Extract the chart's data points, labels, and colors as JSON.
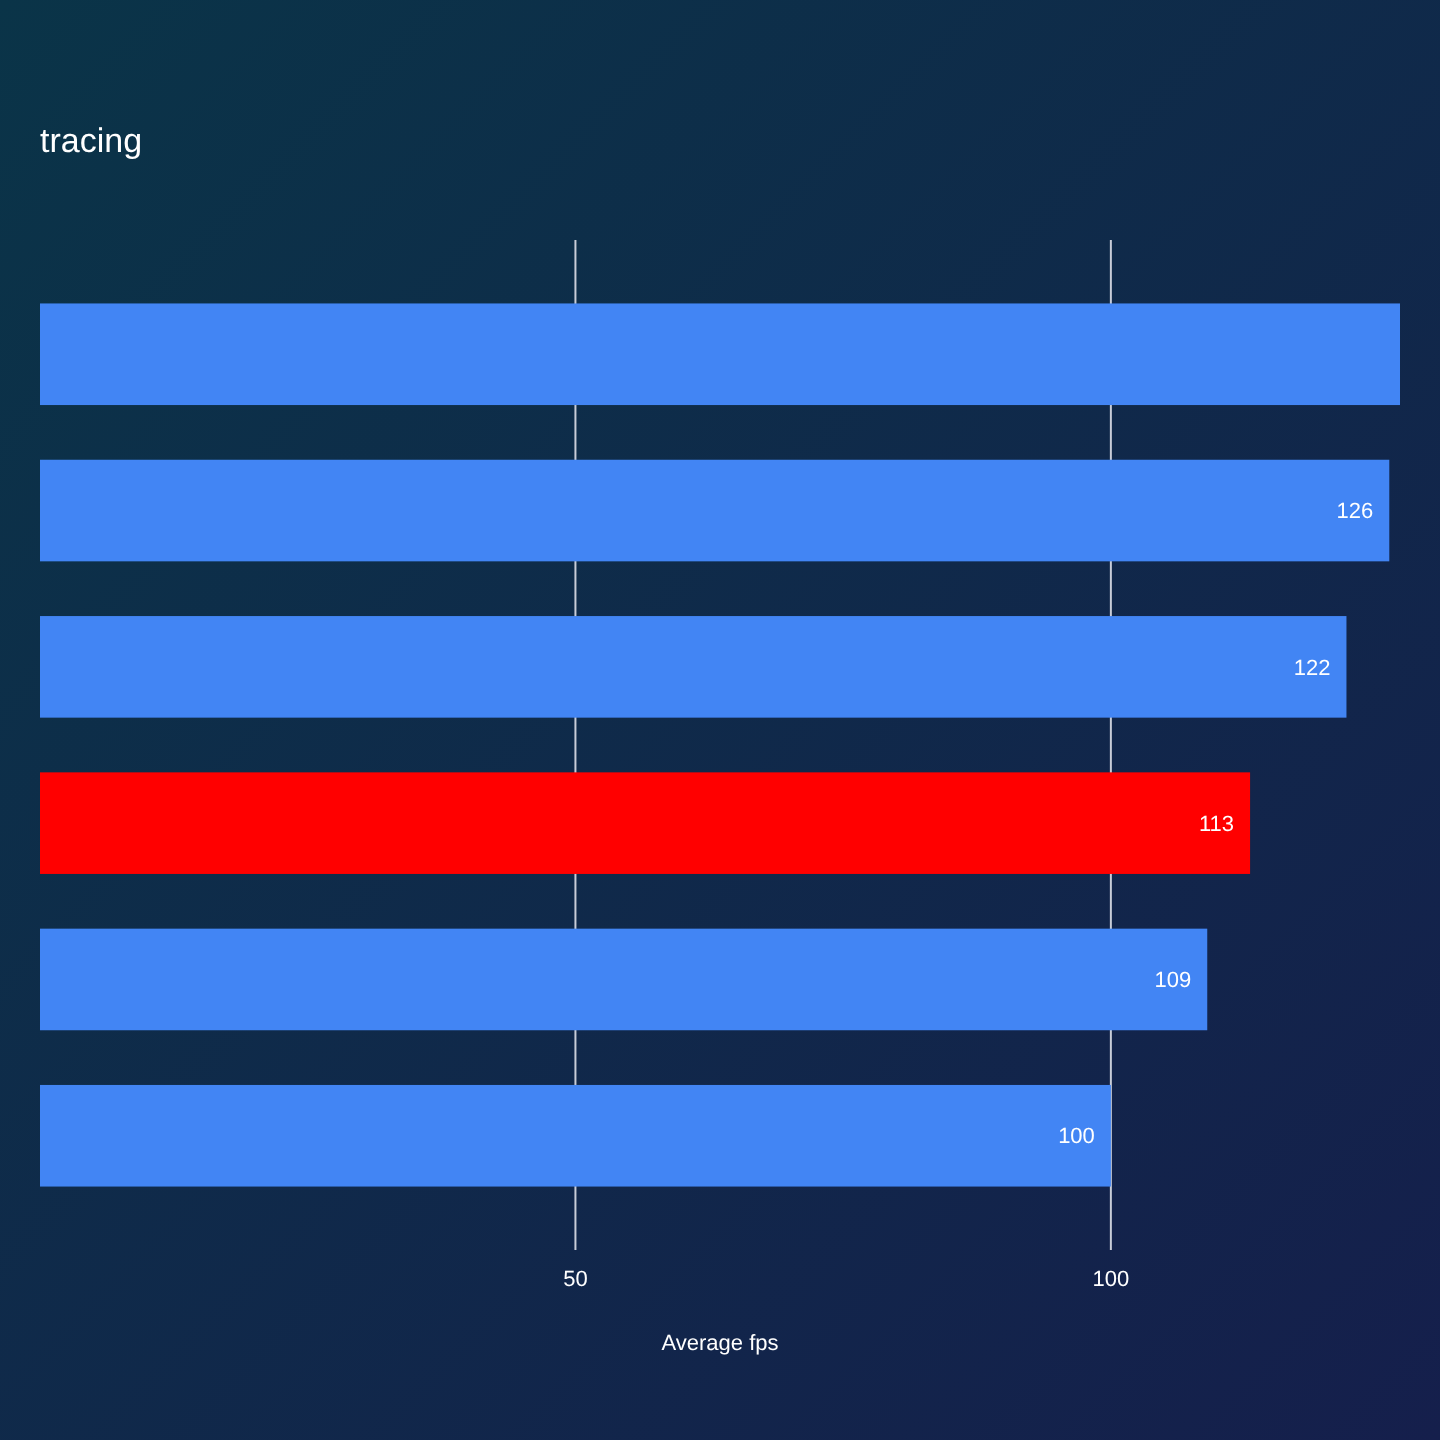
{
  "chart_data": {
    "type": "bar",
    "orientation": "horizontal",
    "title": "tracing",
    "xlabel": "Average fps",
    "categories": [
      null,
      null,
      null,
      null,
      null,
      null
    ],
    "values": [
      127,
      126,
      122,
      113,
      109,
      100
    ],
    "colors": [
      "#4285f4",
      "#4285f4",
      "#4285f4",
      "#ff0000",
      "#4285f4",
      "#4285f4"
    ],
    "value_labels": [
      null,
      "126",
      "122",
      "113",
      "109",
      "100"
    ],
    "xlim": [
      0,
      127
    ],
    "xticks": [
      50,
      100
    ],
    "grid": "x"
  }
}
